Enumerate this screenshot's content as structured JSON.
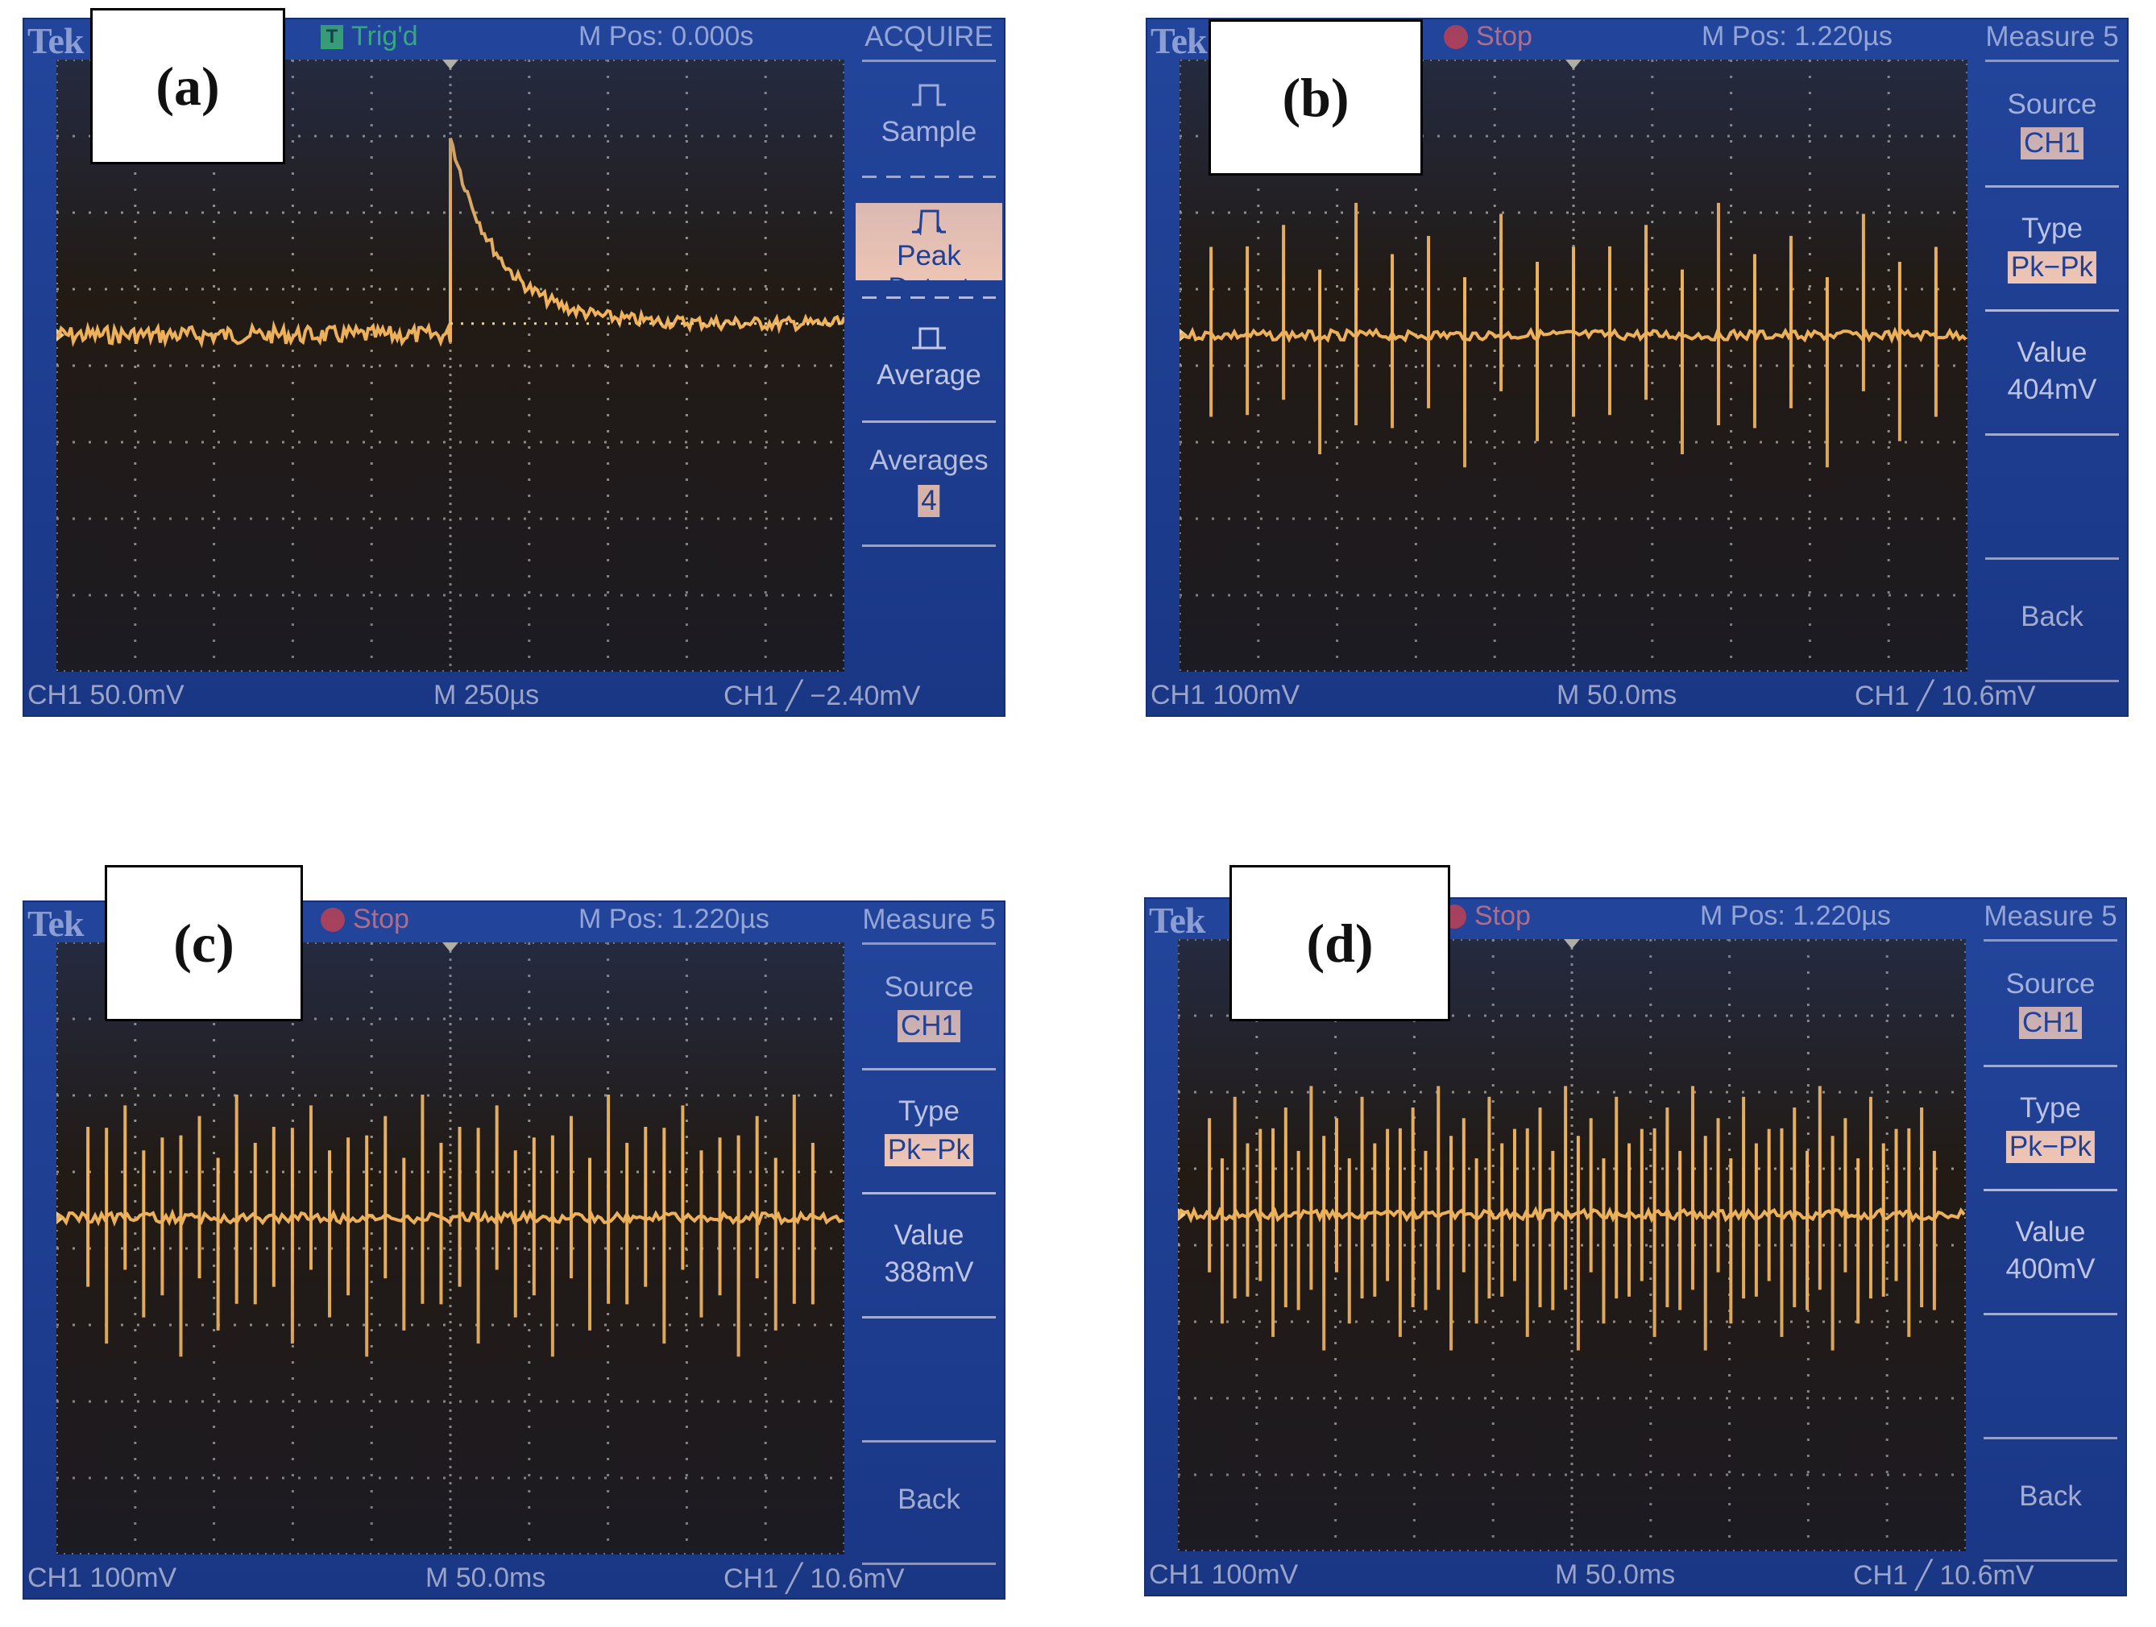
{
  "colors": {
    "bezel": "#1f3f93",
    "screen": "#221a13",
    "trace": "#f2b45a",
    "grid": "#b9b4a8",
    "text": "#c7cdea",
    "highlight": "#f2c7b4",
    "trig_green": "#3cd06a",
    "stop_red": "#e23a3a"
  },
  "panels": [
    {
      "label": "(a)",
      "brand": "Tek",
      "status": {
        "icon": "trig-icon",
        "glyph": "T",
        "text": "Trig'd"
      },
      "m_pos": "M Pos: 0.000s",
      "bottom": {
        "ch": "CH1  50.0mV",
        "time": "M 250µs",
        "trig": "CH1 ╱ −2.40mV"
      },
      "menu": {
        "title": "ACQUIRE",
        "sample": "Sample",
        "peak_detect": "Peak Detect",
        "average": "Average",
        "averages_label": "Averages",
        "averages_value": "4"
      },
      "waveform": {
        "kind": "decay",
        "baseline_div": 3.6,
        "peak_div": 1.0,
        "trigger_div": 5.0,
        "tau_div": 0.6,
        "settle_div": 3.45
      }
    },
    {
      "label": "(b)",
      "brand": "Tek",
      "status": {
        "icon": "stop-icon",
        "text": "Stop"
      },
      "m_pos": "M Pos: 1.220µs",
      "bottom": {
        "ch": "CH1  100mV",
        "time": "M 50.0ms",
        "trig": "CH1 ╱ 10.6mV"
      },
      "menu": {
        "title": "Measure 5",
        "source_label": "Source",
        "source_value": "CH1",
        "type_label": "Type",
        "type_value": "Pk−Pk",
        "value_label": "Value",
        "value_value": "404mV",
        "back": "Back"
      },
      "waveform": {
        "kind": "spikes",
        "count": 21,
        "baseline_div": 3.6,
        "up_div": 1.8,
        "down_div": 1.9
      }
    },
    {
      "label": "(c)",
      "brand": "Tek",
      "status": {
        "icon": "stop-icon",
        "text": "Stop"
      },
      "m_pos": "M Pos: 1.220µs",
      "bottom": {
        "ch": "CH1  100mV",
        "time": "M 50.0ms",
        "trig": "CH1 ╱ 10.6mV"
      },
      "menu": {
        "title": "Measure 5",
        "source_label": "Source",
        "source_value": "CH1",
        "type_label": "Type",
        "type_value": "Pk−Pk",
        "value_label": "Value",
        "value_value": "388mV",
        "back": "Back"
      },
      "waveform": {
        "kind": "spikes",
        "count": 40,
        "baseline_div": 3.6,
        "up_div": 1.75,
        "down_div": 1.9
      }
    },
    {
      "label": "(d)",
      "brand": "Tek",
      "status": {
        "icon": "stop-icon",
        "text": "Stop"
      },
      "m_pos": "M Pos: 1.220µs",
      "bottom": {
        "ch": "CH1  100mV",
        "time": "M 50.0ms",
        "trig": "CH1 ╱ 10.6mV"
      },
      "menu": {
        "title": "Measure 5",
        "source_label": "Source",
        "source_value": "CH1",
        "type_label": "Type",
        "type_value": "Pk−Pk",
        "value_label": "Value",
        "value_value": "400mV",
        "back": "Back"
      },
      "waveform": {
        "kind": "spikes",
        "count": 58,
        "baseline_div": 3.6,
        "up_div": 1.75,
        "down_div": 1.95
      }
    }
  ]
}
